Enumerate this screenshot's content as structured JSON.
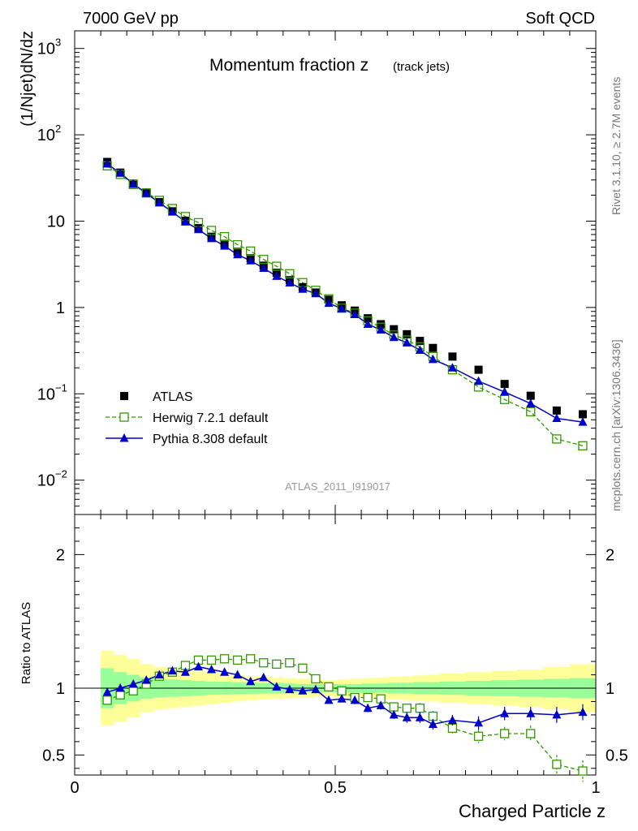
{
  "header": {
    "left": "7000 GeV pp",
    "right": "Soft QCD"
  },
  "side": {
    "rivet": "Rivet 3.1.10, ≥ 2.7M events",
    "mcplots": "mcplots.cern.ch [arXiv:1306.3436]"
  },
  "chart_data": [
    {
      "type": "scatter",
      "panel": "main",
      "title": "Momentum fraction z",
      "title_sub": "(track jets)",
      "ylabel": "(1/Njet)dN/dz",
      "xlabel": "",
      "ylog": true,
      "ylim": [
        0.004,
        1600
      ],
      "xlim": [
        0,
        1
      ],
      "watermark": "ATLAS_2011_I919017",
      "legend_position": "bottom-left",
      "x": [
        0.0625,
        0.0875,
        0.1125,
        0.1375,
        0.1625,
        0.1875,
        0.2125,
        0.2375,
        0.2625,
        0.2875,
        0.3125,
        0.3375,
        0.3625,
        0.3875,
        0.4125,
        0.4375,
        0.4625,
        0.4875,
        0.5125,
        0.5375,
        0.5625,
        0.5875,
        0.6125,
        0.6375,
        0.6625,
        0.6875,
        0.725,
        0.775,
        0.825,
        0.875,
        0.925,
        0.975
      ],
      "series": [
        {
          "name": "ATLAS",
          "color": "#000000",
          "marker": "filled-square",
          "values": [
            48.5,
            36.5,
            27.2,
            21.0,
            16.6,
            13.0,
            10.1,
            8.3,
            6.6,
            5.45,
            4.41,
            3.72,
            3.05,
            2.52,
            2.07,
            1.72,
            1.49,
            1.23,
            1.06,
            0.92,
            0.75,
            0.64,
            0.56,
            0.49,
            0.41,
            0.34,
            0.27,
            0.19,
            0.13,
            0.095,
            0.064,
            0.058
          ]
        },
        {
          "name": "Herwig 7.2.1 default",
          "color": "#339900",
          "marker": "open-square",
          "line": "dashed",
          "values": [
            43.7,
            34.8,
            26.6,
            21.3,
            17.4,
            14.0,
            11.3,
            9.6,
            7.8,
            6.61,
            5.33,
            4.5,
            3.6,
            3.0,
            2.46,
            1.94,
            1.58,
            1.26,
            0.98,
            0.86,
            0.7,
            0.59,
            0.48,
            0.42,
            0.35,
            0.27,
            0.19,
            0.12,
            0.086,
            0.062,
            0.03,
            0.025
          ]
        },
        {
          "name": "Pythia 8.308 default",
          "color": "#0000cc",
          "marker": "filled-triangle",
          "line": "solid",
          "values": [
            46.0,
            36.0,
            27.0,
            21.0,
            16.3,
            12.8,
            9.8,
            8.0,
            6.3,
            5.15,
            4.1,
            3.48,
            2.85,
            2.3,
            1.93,
            1.63,
            1.45,
            1.12,
            0.97,
            0.83,
            0.64,
            0.55,
            0.45,
            0.39,
            0.32,
            0.25,
            0.2,
            0.14,
            0.105,
            0.077,
            0.052,
            0.047
          ]
        }
      ]
    },
    {
      "type": "line",
      "panel": "ratio",
      "ylabel": "Ratio to ATLAS",
      "xlabel": "Charged Particle z",
      "ylim": [
        0.35,
        2.3
      ],
      "xlim": [
        0,
        1
      ],
      "reference": 1.0,
      "x_edges": [
        0.05,
        0.075,
        0.1,
        0.125,
        0.15,
        0.175,
        0.2,
        0.225,
        0.25,
        0.275,
        0.3,
        0.325,
        0.35,
        0.375,
        0.4,
        0.425,
        0.45,
        0.475,
        0.5,
        0.525,
        0.55,
        0.575,
        0.6,
        0.625,
        0.65,
        0.675,
        0.7,
        0.75,
        0.8,
        0.85,
        0.9,
        0.95,
        1.0
      ],
      "band_inner": [
        0.15,
        0.12,
        0.1,
        0.08,
        0.07,
        0.065,
        0.06,
        0.055,
        0.05,
        0.048,
        0.045,
        0.043,
        0.04,
        0.04,
        0.035,
        0.03,
        0.03,
        0.03,
        0.03,
        0.03,
        0.035,
        0.035,
        0.04,
        0.04,
        0.045,
        0.045,
        0.05,
        0.055,
        0.06,
        0.065,
        0.07,
        0.075
      ],
      "band_outer": [
        0.28,
        0.25,
        0.22,
        0.18,
        0.16,
        0.15,
        0.14,
        0.13,
        0.12,
        0.11,
        0.1,
        0.09,
        0.085,
        0.08,
        0.075,
        0.07,
        0.065,
        0.06,
        0.065,
        0.07,
        0.075,
        0.08,
        0.085,
        0.09,
        0.095,
        0.1,
        0.11,
        0.12,
        0.13,
        0.14,
        0.16,
        0.18
      ],
      "series": [
        {
          "name": "Herwig 7.2.1 default",
          "values": [
            0.91,
            0.95,
            0.98,
            1.03,
            1.09,
            1.12,
            1.17,
            1.21,
            1.21,
            1.22,
            1.21,
            1.22,
            1.19,
            1.18,
            1.19,
            1.15,
            1.07,
            1.01,
            0.98,
            0.93,
            0.93,
            0.92,
            0.86,
            0.85,
            0.85,
            0.79,
            0.7,
            0.64,
            0.66,
            0.66,
            0.43,
            0.38
          ],
          "errors": [
            0.02,
            0.02,
            0.02,
            0.02,
            0.02,
            0.02,
            0.02,
            0.02,
            0.02,
            0.02,
            0.02,
            0.02,
            0.02,
            0.02,
            0.02,
            0.02,
            0.02,
            0.02,
            0.02,
            0.03,
            0.03,
            0.03,
            0.03,
            0.03,
            0.04,
            0.04,
            0.04,
            0.05,
            0.05,
            0.06,
            0.07,
            0.08
          ]
        },
        {
          "name": "Pythia 8.308 default",
          "values": [
            0.97,
            1.0,
            1.03,
            1.06,
            1.1,
            1.13,
            1.12,
            1.16,
            1.14,
            1.12,
            1.1,
            1.05,
            1.08,
            1.01,
            0.99,
            0.98,
            0.99,
            0.91,
            0.92,
            0.91,
            0.85,
            0.87,
            0.8,
            0.78,
            0.78,
            0.73,
            0.76,
            0.74,
            0.81,
            0.81,
            0.8,
            0.82
          ],
          "errors": [
            0.02,
            0.02,
            0.02,
            0.02,
            0.02,
            0.02,
            0.02,
            0.02,
            0.02,
            0.02,
            0.02,
            0.02,
            0.02,
            0.02,
            0.02,
            0.02,
            0.02,
            0.02,
            0.02,
            0.03,
            0.03,
            0.03,
            0.03,
            0.04,
            0.04,
            0.04,
            0.04,
            0.05,
            0.05,
            0.05,
            0.06,
            0.06
          ]
        }
      ]
    }
  ]
}
